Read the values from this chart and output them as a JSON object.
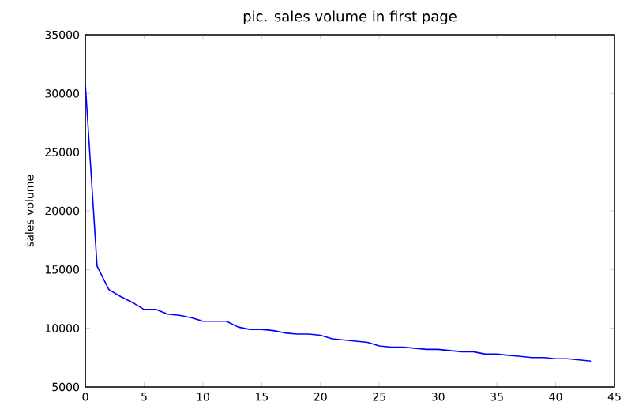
{
  "chart_data": {
    "type": "line",
    "title": "pic. sales volume in first page",
    "ylabel": "sales volume",
    "x": [
      0,
      1,
      2,
      3,
      4,
      5,
      6,
      7,
      8,
      9,
      10,
      11,
      12,
      13,
      14,
      15,
      16,
      17,
      18,
      19,
      20,
      21,
      22,
      23,
      24,
      25,
      26,
      27,
      28,
      29,
      30,
      31,
      32,
      33,
      34,
      35,
      36,
      37,
      38,
      39,
      40,
      41,
      42,
      43
    ],
    "series": [
      {
        "color": "#0000ff",
        "values": [
          30800,
          15300,
          13300,
          12700,
          12200,
          11600,
          11600,
          11200,
          11100,
          10900,
          10600,
          10600,
          10600,
          10100,
          9900,
          9900,
          9800,
          9600,
          9500,
          9500,
          9400,
          9100,
          9000,
          8900,
          8800,
          8500,
          8400,
          8400,
          8300,
          8200,
          8200,
          8100,
          8000,
          8000,
          7800,
          7800,
          7700,
          7600,
          7500,
          7500,
          7400,
          7400,
          7300,
          7200
        ]
      }
    ],
    "xlim": [
      0,
      45
    ],
    "ylim": [
      5000,
      35000
    ],
    "xticks": [
      0,
      5,
      10,
      15,
      20,
      25,
      30,
      35,
      40,
      45
    ],
    "yticks": [
      5000,
      10000,
      15000,
      20000,
      25000,
      30000,
      35000
    ]
  }
}
